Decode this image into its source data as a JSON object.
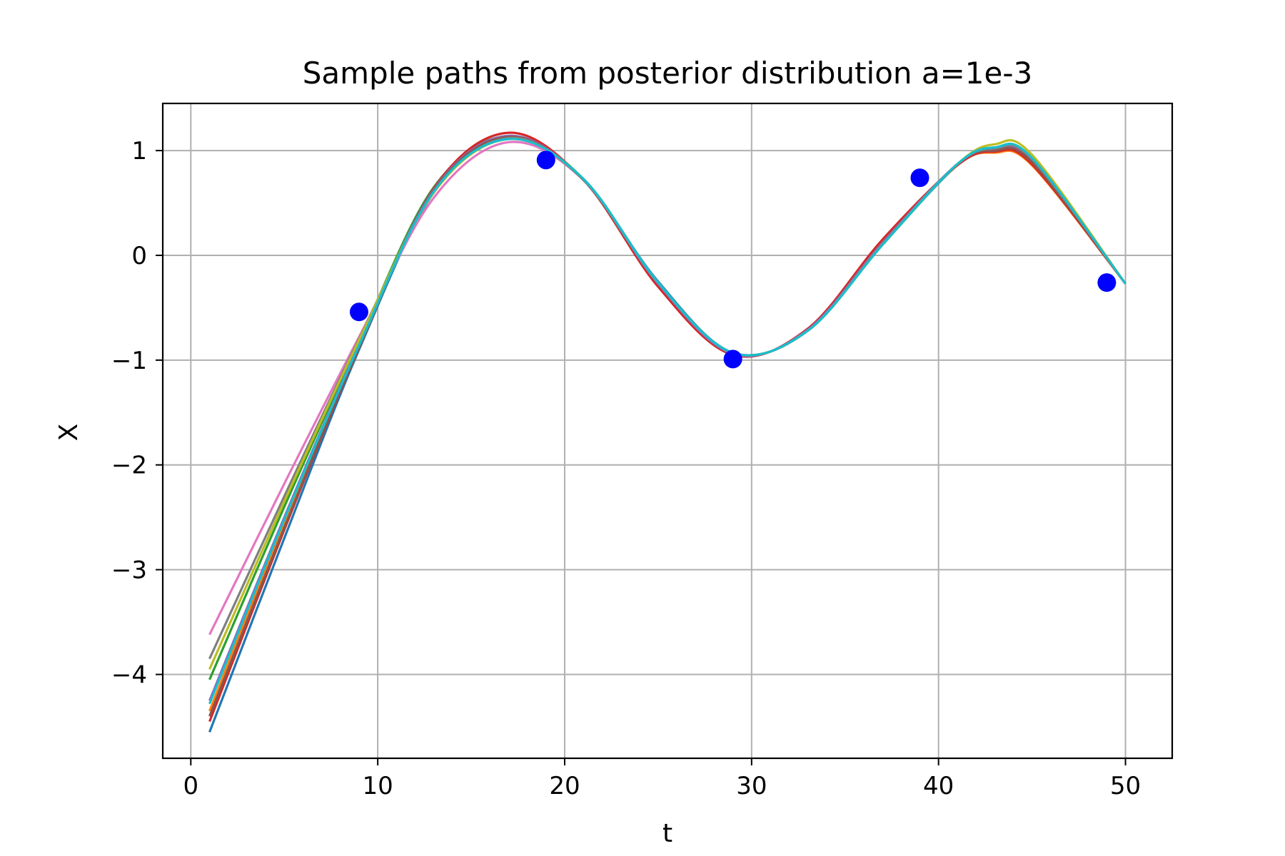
{
  "chart_data": {
    "type": "line",
    "title": "Sample paths from posterior distribution a=1e-3",
    "xlabel": "t",
    "ylabel": "X",
    "xlim": [
      -1.5,
      52.5
    ],
    "ylim": [
      -4.8,
      1.45
    ],
    "xticks": [
      0,
      10,
      20,
      30,
      40,
      50
    ],
    "yticks": [
      1,
      0,
      -1,
      -2,
      -3,
      -4
    ],
    "xtick_labels": [
      "0",
      "10",
      "20",
      "30",
      "40",
      "50"
    ],
    "ytick_labels": [
      "1",
      "0",
      "−1",
      "−2",
      "−3",
      "−4"
    ],
    "grid": true,
    "observations": {
      "color": "#0000ff",
      "x": [
        9,
        19,
        29,
        39,
        49
      ],
      "y": [
        -0.54,
        0.91,
        -0.99,
        0.74,
        -0.26
      ]
    },
    "sample_paths": {
      "x": [
        1,
        5,
        9,
        13,
        17,
        21,
        25,
        29,
        33,
        37,
        41,
        43,
        45,
        50
      ],
      "series": [
        {
          "color": "#1f77b4",
          "y": [
            -4.55,
            -2.7,
            -0.9,
            0.6,
            1.12,
            0.72,
            -0.25,
            -0.93,
            -0.72,
            0.1,
            0.86,
            1.01,
            0.9,
            -0.27
          ]
        },
        {
          "color": "#ff7f0e",
          "y": [
            -4.35,
            -2.55,
            -0.86,
            0.62,
            1.13,
            0.72,
            -0.28,
            -0.94,
            -0.71,
            0.13,
            0.86,
            0.98,
            0.86,
            -0.27
          ]
        },
        {
          "color": "#2ca02c",
          "y": [
            -4.05,
            -2.4,
            -0.82,
            0.65,
            1.14,
            0.73,
            -0.27,
            -0.94,
            -0.71,
            0.11,
            0.87,
            1.03,
            0.93,
            -0.27
          ]
        },
        {
          "color": "#d62728",
          "y": [
            -4.45,
            -2.62,
            -0.88,
            0.64,
            1.17,
            0.72,
            -0.3,
            -0.95,
            -0.7,
            0.15,
            0.86,
            0.99,
            0.87,
            -0.27
          ]
        },
        {
          "color": "#9467bd",
          "y": [
            -4.25,
            -2.5,
            -0.85,
            0.63,
            1.14,
            0.72,
            -0.27,
            -0.94,
            -0.71,
            0.12,
            0.87,
            1.0,
            0.9,
            -0.27
          ]
        },
        {
          "color": "#8c564b",
          "y": [
            -4.4,
            -2.6,
            -0.88,
            0.62,
            1.13,
            0.72,
            -0.26,
            -0.93,
            -0.72,
            0.11,
            0.87,
            1.0,
            0.89,
            -0.27
          ]
        },
        {
          "color": "#e377c2",
          "y": [
            -3.62,
            -2.18,
            -0.78,
            0.55,
            1.08,
            0.72,
            -0.26,
            -0.93,
            -0.72,
            0.11,
            0.87,
            1.02,
            0.92,
            -0.27
          ]
        },
        {
          "color": "#7f7f7f",
          "y": [
            -3.85,
            -2.3,
            -0.8,
            0.6,
            1.12,
            0.72,
            -0.26,
            -0.93,
            -0.72,
            0.11,
            0.87,
            1.02,
            0.92,
            -0.27
          ]
        },
        {
          "color": "#bcbd22",
          "y": [
            -3.95,
            -2.35,
            -0.81,
            0.6,
            1.11,
            0.73,
            -0.26,
            -0.93,
            -0.72,
            0.1,
            0.87,
            1.06,
            0.96,
            -0.27
          ]
        },
        {
          "color": "#17becf",
          "y": [
            -4.28,
            -2.52,
            -0.86,
            0.61,
            1.11,
            0.73,
            -0.26,
            -0.93,
            -0.72,
            0.1,
            0.87,
            1.03,
            0.93,
            -0.27
          ]
        }
      ]
    }
  }
}
